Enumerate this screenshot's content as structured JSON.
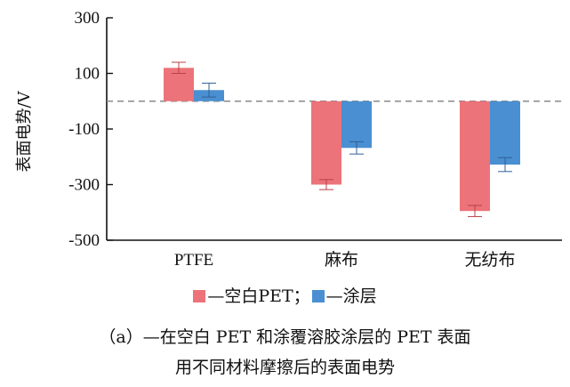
{
  "chart_data": {
    "type": "bar",
    "categories": [
      "PTFE",
      "麻布",
      "无纺布"
    ],
    "series": [
      {
        "name": "空白PET",
        "values": [
          120,
          -300,
          -395
        ],
        "errors": [
          20,
          18,
          20
        ],
        "color": "#ec7379"
      },
      {
        "name": "涂层",
        "values": [
          40,
          -168,
          -228
        ],
        "errors": [
          25,
          22,
          25
        ],
        "color": "#4a8fd1"
      }
    ],
    "title": "",
    "xlabel": "",
    "ylabel": "表面电势/V",
    "ylim": [
      -500,
      300
    ],
    "yticks": [
      300,
      100,
      -100,
      -300,
      -500
    ],
    "ytick_labels": [
      "300",
      "100",
      "-100",
      "-300",
      "-500"
    ],
    "reference_line": 0,
    "grid": false,
    "legend_position": "bottom"
  },
  "legend": {
    "items": [
      {
        "label": "—空白PET",
        "color": "#ec7379"
      },
      {
        "label": "—涂层",
        "color": "#4a8fd1"
      }
    ],
    "separator": "；"
  },
  "caption": {
    "line1": "（a）—在空白 PET 和涂覆溶胶涂层的 PET 表面",
    "line2": "用不同材料摩擦后的表面电势"
  }
}
